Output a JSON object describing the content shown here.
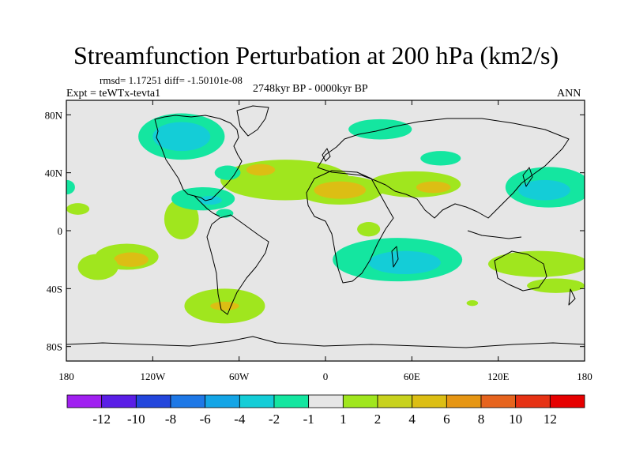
{
  "chart_data": {
    "type": "heatmap",
    "title": "Streamfunction Perturbation at 200 hPa (km2/s)",
    "stats": "rmsd= 1.17251 diff= -1.50101e-08",
    "subtitle": "2748kyr BP - 0000kyr BP",
    "left_label": "Expt = teWTx-tevta1",
    "right_label": "ANN",
    "x_axis": {
      "range": [
        -180,
        180
      ],
      "ticks": [
        -180,
        -120,
        -60,
        0,
        60,
        120,
        180
      ],
      "tick_labels": [
        "180",
        "120W",
        "60W",
        "0",
        "60E",
        "120E",
        "180"
      ]
    },
    "y_axis": {
      "range": [
        -90,
        90
      ],
      "ticks": [
        80,
        40,
        0,
        -40,
        -80
      ],
      "tick_labels": [
        "80N",
        "40N",
        "0",
        "40S",
        "80S"
      ]
    },
    "colorbar": {
      "labels": [
        "-12",
        "-10",
        "-8",
        "-6",
        "-4",
        "-2",
        "-1",
        "1",
        "2",
        "4",
        "6",
        "8",
        "10",
        "12"
      ],
      "colors": [
        "#a020f0",
        "#5a1ee6",
        "#2346dc",
        "#1e78e6",
        "#14a5e6",
        "#14cdd7",
        "#14e6a0",
        "#e6e6e6",
        "#a0e61e",
        "#c8d21e",
        "#dcbe14",
        "#e69614",
        "#e6641e",
        "#e63214",
        "#e60000"
      ]
    },
    "regions": [
      {
        "lon": -138,
        "lat": -18,
        "rlon": 22,
        "rlat": 9,
        "level": 1
      },
      {
        "lon": -135,
        "lat": -20,
        "rlon": 12,
        "rlat": 5,
        "level": 3
      },
      {
        "lon": -158,
        "lat": -25,
        "rlon": 14,
        "rlat": 9,
        "level": 1
      },
      {
        "lon": -100,
        "lat": 8,
        "rlon": 12,
        "rlat": 14,
        "level": 1
      },
      {
        "lon": -70,
        "lat": -52,
        "rlon": 28,
        "rlat": 12,
        "level": 1
      },
      {
        "lon": -70,
        "lat": -52,
        "rlon": 10,
        "rlat": 3,
        "level": 3
      },
      {
        "lon": -28,
        "lat": 35,
        "rlon": 45,
        "rlat": 14,
        "level": 1
      },
      {
        "lon": -45,
        "lat": 42,
        "rlon": 10,
        "rlat": 4,
        "level": 3
      },
      {
        "lon": 10,
        "lat": 28,
        "rlon": 30,
        "rlat": 10,
        "level": 1
      },
      {
        "lon": 10,
        "lat": 28,
        "rlon": 18,
        "rlat": 6,
        "level": 3
      },
      {
        "lon": 62,
        "lat": 32,
        "rlon": 32,
        "rlat": 9,
        "level": 1
      },
      {
        "lon": 75,
        "lat": 30,
        "rlon": 12,
        "rlat": 4,
        "level": 3
      },
      {
        "lon": 148,
        "lat": -23,
        "rlon": 35,
        "rlat": 9,
        "level": 1
      },
      {
        "lon": 160,
        "lat": -38,
        "rlon": 20,
        "rlat": 5,
        "level": 1
      },
      {
        "lon": 102,
        "lat": -50,
        "rlon": 4,
        "rlat": 2,
        "level": 1
      },
      {
        "lon": 30,
        "lat": 1,
        "rlon": 8,
        "rlat": 5,
        "level": 1
      },
      {
        "lon": -172,
        "lat": 15,
        "rlon": 8,
        "rlat": 4,
        "level": 1
      },
      {
        "lon": -100,
        "lat": 65,
        "rlon": 30,
        "rlat": 16,
        "level": -1
      },
      {
        "lon": -100,
        "lat": 65,
        "rlon": 20,
        "rlat": 10,
        "level": -2
      },
      {
        "lon": -68,
        "lat": 40,
        "rlon": 9,
        "rlat": 5,
        "level": -1
      },
      {
        "lon": -85,
        "lat": 22,
        "rlon": 22,
        "rlat": 8,
        "level": -1
      },
      {
        "lon": -80,
        "lat": 21,
        "rlon": 8,
        "rlat": 3,
        "level": -2
      },
      {
        "lon": -70,
        "lat": 12,
        "rlon": 6,
        "rlat": 3,
        "level": -1
      },
      {
        "lon": 50,
        "lat": -20,
        "rlon": 45,
        "rlat": 15,
        "level": -1
      },
      {
        "lon": 55,
        "lat": -22,
        "rlon": 25,
        "rlat": 8,
        "level": -2
      },
      {
        "lon": 38,
        "lat": 70,
        "rlon": 22,
        "rlat": 7,
        "level": -1
      },
      {
        "lon": 80,
        "lat": 50,
        "rlon": 14,
        "rlat": 5,
        "level": -1
      },
      {
        "lon": 155,
        "lat": 30,
        "rlon": 30,
        "rlat": 14,
        "level": -1
      },
      {
        "lon": 152,
        "lat": 28,
        "rlon": 18,
        "rlat": 7,
        "level": -2
      },
      {
        "lon": -180,
        "lat": 30,
        "rlon": 6,
        "rlat": 5,
        "level": -1
      },
      {
        "lon": 180,
        "lat": 30,
        "rlon": 10,
        "rlat": 5,
        "level": -1
      }
    ]
  }
}
